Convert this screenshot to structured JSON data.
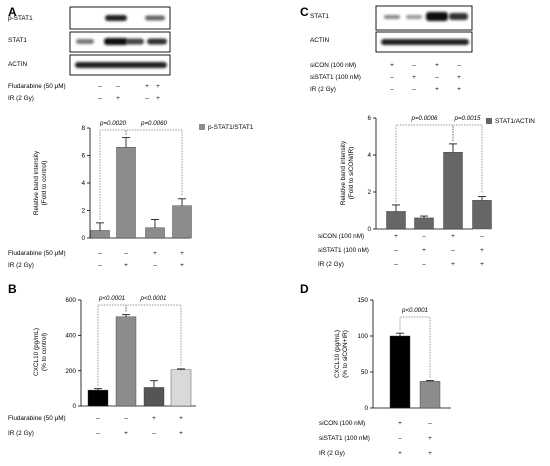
{
  "panels": {
    "A": {
      "label": "A",
      "blot_labels": [
        "p-STAT1",
        "STAT1",
        "ACTIN"
      ],
      "treatment_rows": [
        {
          "label": "Fludarabine (50 μM)",
          "signs": [
            "–",
            "–",
            "+",
            "+"
          ]
        },
        {
          "label": "IR (2 Gy)",
          "signs": [
            "–",
            "+",
            "–",
            "+"
          ]
        }
      ]
    },
    "B": {
      "label": "B"
    },
    "C": {
      "label": "C",
      "blot_labels": [
        "STAT1",
        "ACTIN"
      ],
      "treatment_rows": [
        {
          "label": "siCON (100 nM)",
          "signs": [
            "+",
            "–",
            "+",
            "–"
          ]
        },
        {
          "label": "siSTAT1 (100 nM)",
          "signs": [
            "–",
            "+",
            "–",
            "+"
          ]
        },
        {
          "label": "IR (2 Gy)",
          "signs": [
            "–",
            "–",
            "+",
            "+"
          ]
        }
      ]
    },
    "D": {
      "label": "D"
    }
  },
  "chart_data": [
    {
      "id": "A",
      "type": "bar",
      "ylabel": [
        "Relative band intensity",
        "(Fold to control)"
      ],
      "ylim": [
        0,
        8
      ],
      "yticks": [
        0,
        2,
        4,
        6,
        8
      ],
      "legend": "p-STAT1/STAT1",
      "legend_position": "top-right",
      "values": [
        0.55,
        6.6,
        0.75,
        2.35
      ],
      "errors": [
        0.55,
        0.7,
        0.6,
        0.5
      ],
      "colors": [
        "#8c8c8c",
        "#8c8c8c",
        "#8c8c8c",
        "#8c8c8c"
      ],
      "pvalues": [
        {
          "text": "p=0.0020",
          "from": 0,
          "to": 1
        },
        {
          "text": "p=0.0060",
          "from": 1,
          "to": 3
        }
      ],
      "rows": [
        {
          "label": "Fludarabine (50 μM)",
          "signs": [
            "–",
            "–",
            "+",
            "+"
          ]
        },
        {
          "label": "IR (2 Gy)",
          "signs": [
            "–",
            "+",
            "–",
            "+"
          ]
        }
      ]
    },
    {
      "id": "B",
      "type": "bar",
      "ylabel": [
        "CXCL10 (pg/mL)",
        "(% to control)"
      ],
      "ylim": [
        0,
        600
      ],
      "yticks": [
        0,
        200,
        400,
        600
      ],
      "values": [
        90,
        505,
        105,
        205
      ],
      "errors": [
        8,
        12,
        38,
        5
      ],
      "colors": [
        "#000000",
        "#8c8c8c",
        "#555555",
        "#d9d9d9"
      ],
      "pvalues": [
        {
          "text": "p<0.0001",
          "from": 0,
          "to": 1
        },
        {
          "text": "p<0.0001",
          "from": 1,
          "to": 3
        }
      ],
      "rows": [
        {
          "label": "Fludarabine (50 μM)",
          "signs": [
            "–",
            "–",
            "+",
            "+"
          ]
        },
        {
          "label": "IR (2 Gy)",
          "signs": [
            "–",
            "+",
            "–",
            "+"
          ]
        }
      ]
    },
    {
      "id": "C",
      "type": "bar",
      "ylabel": [
        "Relative band intensity",
        "(Fold to siCON/IR)"
      ],
      "ylim": [
        0,
        6
      ],
      "yticks": [
        0,
        2,
        4,
        6
      ],
      "legend": "STAT1/ACTIN",
      "legend_position": "top-right",
      "values": [
        0.95,
        0.6,
        4.15,
        1.55
      ],
      "errors": [
        0.35,
        0.1,
        0.45,
        0.2
      ],
      "colors": [
        "#666666",
        "#666666",
        "#666666",
        "#666666"
      ],
      "pvalues": [
        {
          "text": "p=0.0006",
          "from": 0,
          "to": 2
        },
        {
          "text": "p=0.0015",
          "from": 2,
          "to": 3
        }
      ],
      "rows": [
        {
          "label": "siCON (100 nM)",
          "signs": [
            "+",
            "–",
            "+",
            "–"
          ]
        },
        {
          "label": "siSTAT1 (100 nM)",
          "signs": [
            "–",
            "+",
            "–",
            "+"
          ]
        },
        {
          "label": "IR (2 Gy)",
          "signs": [
            "–",
            "–",
            "+",
            "+"
          ]
        }
      ]
    },
    {
      "id": "D",
      "type": "bar",
      "ylabel": [
        "CXCL10 (pg/mL)",
        "(% to siCON+IR)"
      ],
      "ylim": [
        0,
        150
      ],
      "yticks": [
        0,
        50,
        100,
        150
      ],
      "values": [
        100,
        37
      ],
      "errors": [
        4,
        1
      ],
      "colors": [
        "#000000",
        "#8c8c8c"
      ],
      "pvalues": [
        {
          "text": "p<0.0001",
          "from": 0,
          "to": 1
        }
      ],
      "rows": [
        {
          "label": "siCON (100 nM)",
          "signs": [
            "+",
            "–"
          ]
        },
        {
          "label": "siSTAT1 (100 nM)",
          "signs": [
            "–",
            "+"
          ]
        },
        {
          "label": "IR (2 Gy)",
          "signs": [
            "+",
            "+"
          ]
        }
      ]
    }
  ]
}
